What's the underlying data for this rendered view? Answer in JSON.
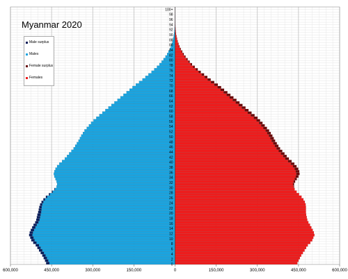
{
  "chart_data": {
    "type": "bar",
    "subtype": "population-pyramid",
    "title": "Myanmar 2020",
    "xlim": [
      -600000,
      600000
    ],
    "xticks": [
      {
        "value": -600000,
        "label": "600,000"
      },
      {
        "value": -450000,
        "label": "450,000"
      },
      {
        "value": -300000,
        "label": "300,000"
      },
      {
        "value": -150000,
        "label": "150,000"
      },
      {
        "value": 0,
        "label": "0"
      },
      {
        "value": 150000,
        "label": "150,000"
      },
      {
        "value": 300000,
        "label": "300,000"
      },
      {
        "value": 450000,
        "label": "450,000"
      },
      {
        "value": 600000,
        "label": "600,000"
      }
    ],
    "ages": [
      0,
      1,
      2,
      3,
      4,
      5,
      6,
      7,
      8,
      9,
      10,
      11,
      12,
      13,
      14,
      15,
      16,
      17,
      18,
      19,
      20,
      21,
      22,
      23,
      24,
      25,
      26,
      27,
      28,
      29,
      30,
      31,
      32,
      33,
      34,
      35,
      36,
      37,
      38,
      39,
      40,
      41,
      42,
      43,
      44,
      45,
      46,
      47,
      48,
      49,
      50,
      51,
      52,
      53,
      54,
      55,
      56,
      57,
      58,
      59,
      60,
      61,
      62,
      63,
      64,
      65,
      66,
      67,
      68,
      69,
      70,
      71,
      72,
      73,
      74,
      75,
      76,
      77,
      78,
      79,
      80,
      81,
      82,
      83,
      84,
      85,
      86,
      87,
      88,
      89,
      90,
      91,
      92,
      93,
      94,
      95,
      96,
      97,
      98,
      99,
      100
    ],
    "age_labels": [
      "0",
      "",
      "2",
      "",
      "4",
      "",
      "6",
      "",
      "8",
      "",
      "10",
      "",
      "12",
      "",
      "14",
      "",
      "16",
      "",
      "18",
      "",
      "20",
      "",
      "22",
      "",
      "24",
      "",
      "26",
      "",
      "28",
      "",
      "30",
      "",
      "32",
      "",
      "34",
      "",
      "36",
      "",
      "38",
      "",
      "40",
      "",
      "42",
      "",
      "44",
      "",
      "46",
      "",
      "48",
      "",
      "50",
      "",
      "52",
      "",
      "54",
      "",
      "56",
      "",
      "58",
      "",
      "60",
      "",
      "62",
      "",
      "64",
      "",
      "66",
      "",
      "68",
      "",
      "70",
      "",
      "72",
      "",
      "74",
      "",
      "76",
      "",
      "78",
      "",
      "80",
      "",
      "82",
      "",
      "84",
      "",
      "86",
      "",
      "88",
      "",
      "90",
      "",
      "92",
      "",
      "94",
      "",
      "96",
      "",
      "98",
      "",
      "100+"
    ],
    "series": [
      {
        "name": "Males",
        "color": "#1aa4e0",
        "values": [
          458000,
          462000,
          467000,
          472000,
          478000,
          484000,
          490000,
          496000,
          505000,
          512000,
          516000,
          520000,
          518000,
          514000,
          509000,
          504000,
          498000,
          494000,
          492000,
          490000,
          488000,
          487000,
          486000,
          484000,
          480000,
          474000,
          466000,
          456000,
          446000,
          438000,
          432000,
          430000,
          432000,
          436000,
          440000,
          442000,
          440000,
          436000,
          430000,
          422000,
          412000,
          402000,
          394000,
          386000,
          378000,
          370000,
          364000,
          358000,
          352000,
          347000,
          342000,
          336000,
          330000,
          322000,
          314000,
          306000,
          297000,
          287000,
          276000,
          265000,
          254000,
          243000,
          232000,
          221000,
          210000,
          199000,
          188000,
          177000,
          166000,
          155000,
          143000,
          131000,
          119000,
          108000,
          97000,
          86000,
          76000,
          66000,
          57000,
          49000,
          42000,
          35000,
          29000,
          24000,
          19000,
          15000,
          12000,
          9000,
          7000,
          5000,
          3500,
          2500,
          1800,
          1200,
          800,
          500,
          300,
          200,
          100,
          60,
          40
        ]
      },
      {
        "name": "Male surplus",
        "color": "#0a1e5a",
        "values": [
          12000,
          12000,
          12000,
          12000,
          12000,
          12000,
          12000,
          12000,
          12000,
          12000,
          12000,
          12000,
          12000,
          12000,
          12000,
          12000,
          12000,
          12000,
          12000,
          12000,
          11000,
          10000,
          9000,
          8000,
          7000,
          6000,
          5000,
          4000,
          3000,
          2000,
          0,
          0,
          0,
          0,
          0,
          0,
          0,
          0,
          0,
          0,
          0,
          0,
          0,
          0,
          0,
          0,
          0,
          0,
          0,
          0,
          0,
          0,
          0,
          0,
          0,
          0,
          0,
          0,
          0,
          0,
          0,
          0,
          0,
          0,
          0,
          0,
          0,
          0,
          0,
          0,
          0,
          0,
          0,
          0,
          0,
          0,
          0,
          0,
          0,
          0,
          0,
          0,
          0,
          0,
          0,
          0,
          0,
          0,
          0,
          0,
          0,
          0,
          0,
          0,
          0,
          0,
          0,
          0,
          0,
          0,
          0
        ]
      },
      {
        "name": "Females",
        "color": "#ee1c1c",
        "values": [
          446000,
          450000,
          455000,
          460000,
          466000,
          472000,
          478000,
          484000,
          493000,
          500000,
          504000,
          508000,
          506000,
          502000,
          497000,
          492000,
          486000,
          482000,
          480000,
          478000,
          477000,
          477000,
          477000,
          476000,
          473000,
          468000,
          461000,
          452000,
          443000,
          436000,
          432000,
          430000,
          432000,
          436000,
          440000,
          442000,
          440000,
          436000,
          430000,
          422000,
          412000,
          402000,
          394000,
          386000,
          378000,
          370000,
          364000,
          358000,
          352000,
          347000,
          342000,
          336000,
          330000,
          322000,
          314000,
          306000,
          297000,
          287000,
          276000,
          265000,
          254000,
          243000,
          232000,
          221000,
          210000,
          199000,
          188000,
          177000,
          166000,
          155000,
          143000,
          131000,
          119000,
          108000,
          97000,
          86000,
          76000,
          66000,
          57000,
          49000,
          42000,
          35000,
          29000,
          24000,
          19000,
          15000,
          12000,
          9000,
          7000,
          5000,
          3500,
          2500,
          1800,
          1200,
          800,
          500,
          300,
          200,
          100,
          60,
          40
        ]
      },
      {
        "name": "Female surplus",
        "color": "#6a0a0a",
        "values": [
          0,
          0,
          0,
          0,
          0,
          0,
          0,
          0,
          0,
          0,
          0,
          0,
          0,
          0,
          0,
          0,
          0,
          0,
          0,
          0,
          0,
          0,
          0,
          0,
          0,
          0,
          0,
          0,
          0,
          0,
          2000,
          4000,
          6000,
          8000,
          10000,
          12000,
          13000,
          13000,
          13000,
          13000,
          13000,
          13000,
          13000,
          13000,
          13000,
          13000,
          13000,
          13000,
          13000,
          13000,
          13000,
          13000,
          13000,
          13000,
          13000,
          13000,
          13000,
          14000,
          14000,
          14000,
          14000,
          14000,
          14000,
          14000,
          14000,
          14000,
          14000,
          14000,
          13000,
          13000,
          13000,
          12000,
          11000,
          10000,
          9000,
          8000,
          7000,
          6000,
          5000,
          4500,
          4000,
          3500,
          3000,
          2500,
          2000,
          1500,
          1200,
          900,
          700,
          500,
          350,
          250,
          180,
          120,
          80,
          50,
          30,
          20,
          10,
          6,
          4
        ]
      }
    ],
    "legend": {
      "position": "top-left",
      "order": [
        "Male surplus",
        "Males",
        "Female surplus",
        "Females"
      ]
    },
    "grid": true
  }
}
